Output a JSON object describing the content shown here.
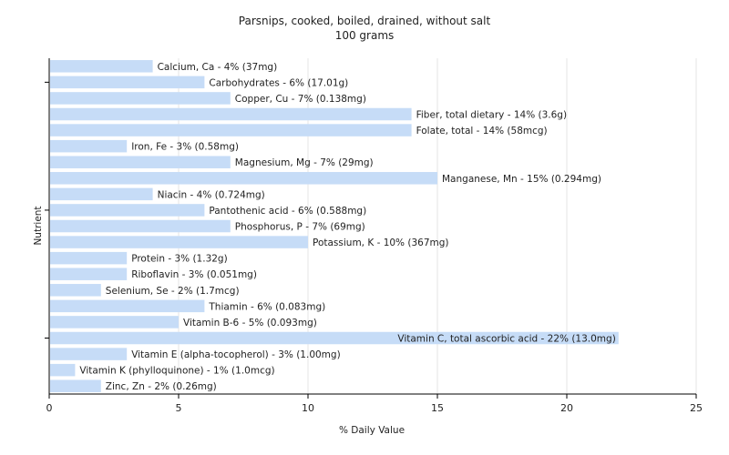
{
  "chart_data": {
    "type": "bar",
    "orientation": "horizontal",
    "title": "Parsnips, cooked, boiled, drained, without salt",
    "subtitle": "100 grams",
    "xlabel": "% Daily Value",
    "ylabel": "Nutrient",
    "xlim": [
      0,
      25
    ],
    "xticks": [
      0,
      5,
      10,
      15,
      20,
      25
    ],
    "bar_color": "#c6dcf7",
    "categories": [
      "Calcium, Ca",
      "Carbohydrates",
      "Copper, Cu",
      "Fiber, total dietary",
      "Folate, total",
      "Iron, Fe",
      "Magnesium, Mg",
      "Manganese, Mn",
      "Niacin",
      "Pantothenic acid",
      "Phosphorus, P",
      "Potassium, K",
      "Protein",
      "Riboflavin",
      "Selenium, Se",
      "Thiamin",
      "Vitamin B-6",
      "Vitamin C, total ascorbic acid",
      "Vitamin E (alpha-tocopherol)",
      "Vitamin K (phylloquinone)",
      "Zinc, Zn"
    ],
    "values": [
      4,
      6,
      7,
      14,
      14,
      3,
      7,
      15,
      4,
      6,
      7,
      10,
      3,
      3,
      2,
      6,
      5,
      22,
      3,
      1,
      2
    ],
    "labels": [
      "Calcium, Ca - 4% (37mg)",
      "Carbohydrates - 6% (17.01g)",
      "Copper, Cu - 7% (0.138mg)",
      "Fiber, total dietary - 14% (3.6g)",
      "Folate, total - 14% (58mcg)",
      "Iron, Fe - 3% (0.58mg)",
      "Magnesium, Mg - 7% (29mg)",
      "Manganese, Mn - 15% (0.294mg)",
      "Niacin - 4% (0.724mg)",
      "Pantothenic acid - 6% (0.588mg)",
      "Phosphorus, P - 7% (69mg)",
      "Potassium, K - 10% (367mg)",
      "Protein - 3% (1.32g)",
      "Riboflavin - 3% (0.051mg)",
      "Selenium, Se - 2% (1.7mcg)",
      "Thiamin - 6% (0.083mg)",
      "Vitamin B-6 - 5% (0.093mg)",
      "Vitamin C, total ascorbic acid - 22% (13.0mg)",
      "Vitamin E (alpha-tocopherol) - 3% (1.00mg)",
      "Vitamin K (phylloquinone) - 1% (1.0mcg)",
      "Zinc, Zn - 2% (0.26mg)"
    ]
  }
}
